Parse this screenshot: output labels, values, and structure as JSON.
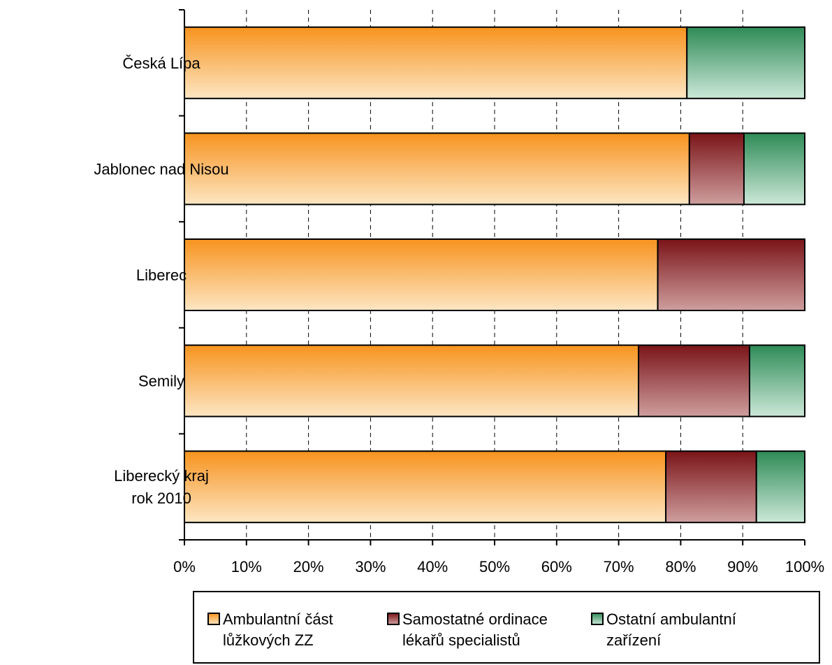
{
  "chart_data": {
    "type": "bar",
    "orientation": "horizontal",
    "stacked": "percent",
    "categories": [
      [
        "Česká Lípa"
      ],
      [
        "Jablonec nad Nisou"
      ],
      [
        "Liberec"
      ],
      [
        "Semily"
      ],
      [
        "Liberecký kraj",
        "rok 2010"
      ]
    ],
    "series": [
      {
        "name": [
          "Ambulantní část",
          "lůžkových ZZ"
        ],
        "values": [
          81.0,
          81.4,
          76.3,
          73.2,
          77.6
        ],
        "color_top": "#f7931e",
        "color_bottom": "#fde6c3"
      },
      {
        "name": [
          "Samostatné ordinace",
          "lékařů specialistů"
        ],
        "values": [
          0.0,
          8.8,
          23.7,
          17.9,
          14.6
        ],
        "color_top": "#7a1418",
        "color_bottom": "#cf9e9e"
      },
      {
        "name": [
          "Ostatní ambulantní",
          "zařízení"
        ],
        "values": [
          19.0,
          9.8,
          0.0,
          8.9,
          7.8
        ],
        "color_top": "#2e8b57",
        "color_bottom": "#cce8d8"
      }
    ],
    "x_ticks": [
      "0%",
      "10%",
      "20%",
      "30%",
      "40%",
      "50%",
      "60%",
      "70%",
      "80%",
      "90%",
      "100%"
    ],
    "xlim": [
      0,
      100
    ],
    "grid": "vertical-dashed",
    "legend_position": "bottom"
  }
}
